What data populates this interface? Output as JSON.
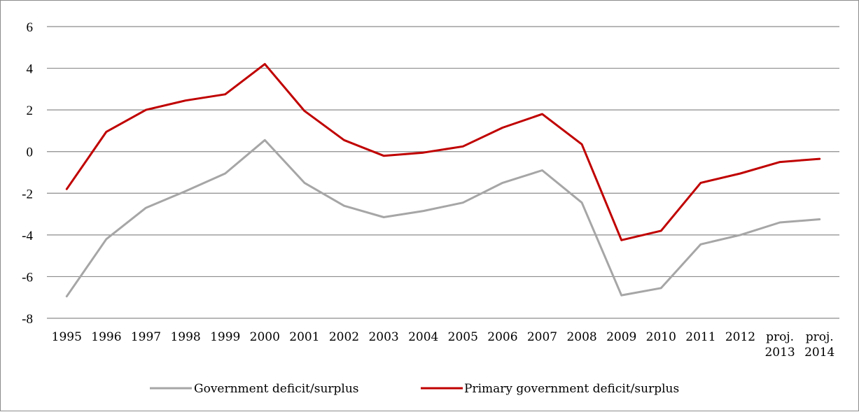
{
  "chart_data": {
    "type": "line",
    "categories": [
      "1995",
      "1996",
      "1997",
      "1998",
      "1999",
      "2000",
      "2001",
      "2002",
      "2003",
      "2004",
      "2005",
      "2006",
      "2007",
      "2008",
      "2009",
      "2010",
      "2011",
      "2012",
      "proj. 2013",
      "proj. 2014"
    ],
    "series": [
      {
        "name": "Government deficit/surplus",
        "color": "#a6a6a6",
        "values": [
          -6.95,
          -4.2,
          -2.7,
          -1.9,
          -1.05,
          0.55,
          -1.5,
          -2.6,
          -3.15,
          -2.85,
          -2.45,
          -1.5,
          -0.9,
          -2.45,
          -6.9,
          -6.55,
          -4.45,
          -4.0,
          -3.4,
          -3.25
        ]
      },
      {
        "name": "Primary government deficit/surplus",
        "color": "#c00000",
        "values": [
          -1.8,
          0.95,
          2.0,
          2.45,
          2.75,
          4.2,
          1.95,
          0.55,
          -0.2,
          -0.05,
          0.25,
          1.15,
          1.8,
          0.35,
          -4.25,
          -3.8,
          -1.5,
          -1.05,
          -0.5,
          -0.35
        ]
      }
    ],
    "ylim": [
      -8,
      6
    ],
    "yticks": [
      -8,
      -6,
      -4,
      -2,
      0,
      2,
      4,
      6
    ],
    "ytick_labels": [
      "-8",
      "-6",
      "-4",
      "-2",
      "0",
      "2",
      "4",
      "6"
    ],
    "grid": true,
    "legend_position": "bottom",
    "title": "",
    "xlabel": "",
    "ylabel": ""
  }
}
